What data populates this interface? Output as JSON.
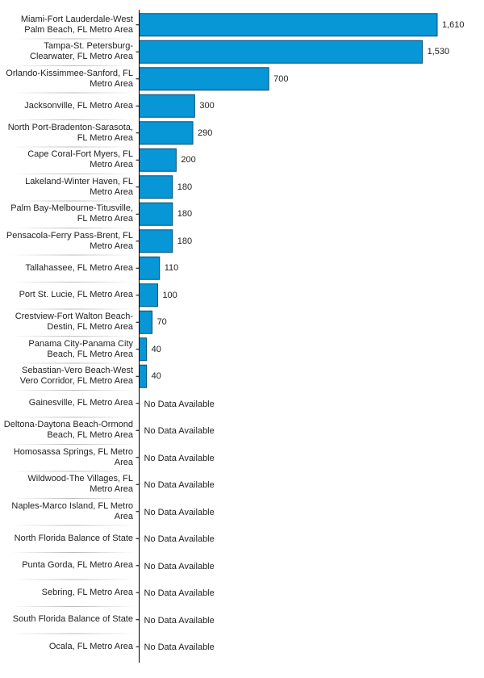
{
  "chart_data": {
    "type": "bar",
    "orientation": "horizontal",
    "bar_color": "#0796d6",
    "bar_border": "#0a4f73",
    "no_data_text": "No Data Available",
    "grid": false,
    "xlim": [
      0,
      1610
    ],
    "categories": [
      "Miami-Fort Lauderdale-West Palm Beach, FL Metro Area",
      "Tampa-St. Petersburg-Clearwater, FL Metro Area",
      "Orlando-Kissimmee-Sanford, FL Metro Area",
      "Jacksonville, FL Metro Area",
      "North Port-Bradenton-Sarasota, FL Metro Area",
      "Cape Coral-Fort Myers, FL Metro Area",
      "Lakeland-Winter Haven, FL Metro Area",
      "Palm Bay-Melbourne-Titusville, FL Metro Area",
      "Pensacola-Ferry Pass-Brent, FL Metro Area",
      "Tallahassee, FL Metro Area",
      "Port St. Lucie, FL Metro Area",
      "Crestview-Fort Walton Beach-Destin, FL Metro Area",
      "Panama City-Panama City Beach, FL Metro Area",
      "Sebastian-Vero Beach-West Vero Corridor, FL Metro Area",
      "Gainesville, FL Metro Area",
      "Deltona-Daytona Beach-Ormond Beach, FL Metro Area",
      "Homosassa Springs, FL Metro Area",
      "Wildwood-The Villages, FL Metro Area",
      "Naples-Marco Island, FL Metro Area",
      "North Florida Balance of State",
      "Punta Gorda, FL Metro Area",
      "Sebring, FL Metro Area",
      "South Florida Balance of State",
      "Ocala, FL Metro Area"
    ],
    "values": [
      1610,
      1530,
      700,
      300,
      290,
      200,
      180,
      180,
      180,
      110,
      100,
      70,
      40,
      40,
      null,
      null,
      null,
      null,
      null,
      null,
      null,
      null,
      null,
      null
    ],
    "value_labels": [
      "1,610",
      "1,530",
      "700",
      "300",
      "290",
      "200",
      "180",
      "180",
      "180",
      "110",
      "100",
      "70",
      "40",
      "40",
      null,
      null,
      null,
      null,
      null,
      null,
      null,
      null,
      null,
      null
    ]
  }
}
